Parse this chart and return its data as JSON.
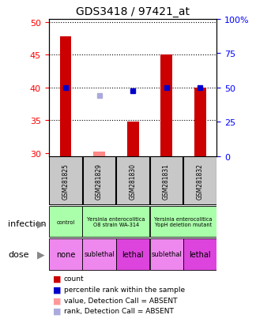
{
  "title": "GDS3418 / 97421_at",
  "samples": [
    "GSM281825",
    "GSM281829",
    "GSM281830",
    "GSM281831",
    "GSM281832"
  ],
  "bar_values": [
    47.8,
    30.2,
    34.8,
    45.0,
    40.0
  ],
  "bar_absent": [
    false,
    true,
    false,
    false,
    false
  ],
  "percentile_left_axis": [
    40.0,
    null,
    39.5,
    40.0,
    40.0
  ],
  "percentile_absent_left": [
    null,
    38.8,
    null,
    null,
    null
  ],
  "ylim_left": [
    29.5,
    50.5
  ],
  "ylim_right": [
    0,
    100
  ],
  "yticks_left": [
    30,
    35,
    40,
    45,
    50
  ],
  "yticks_right": [
    0,
    25,
    50,
    75,
    100
  ],
  "bar_color": "#cc0000",
  "bar_absent_color": "#ff8888",
  "dot_color": "#0000cc",
  "dot_absent_color": "#aaaadd",
  "infection_cells": [
    {
      "text": "control",
      "color": "#aaffaa",
      "span": 1
    },
    {
      "text": "Yersinia enterocolitica\nO8 strain WA-314",
      "color": "#aaffaa",
      "span": 2
    },
    {
      "text": "Yersinia enterocolitica\nYopH deletion mutant",
      "color": "#aaffaa",
      "span": 2
    }
  ],
  "dose_cells": [
    {
      "text": "none",
      "color": "#ee88ee",
      "span": 1
    },
    {
      "text": "sublethal",
      "color": "#ee88ee",
      "span": 1
    },
    {
      "text": "lethal",
      "color": "#dd44dd",
      "span": 1
    },
    {
      "text": "sublethal",
      "color": "#ee88ee",
      "span": 1
    },
    {
      "text": "lethal",
      "color": "#dd44dd",
      "span": 1
    }
  ],
  "legend_items": [
    {
      "label": "count",
      "color": "#cc0000"
    },
    {
      "label": "percentile rank within the sample",
      "color": "#0000cc"
    },
    {
      "label": "value, Detection Call = ABSENT",
      "color": "#ff9999"
    },
    {
      "label": "rank, Detection Call = ABSENT",
      "color": "#aaaadd"
    }
  ]
}
